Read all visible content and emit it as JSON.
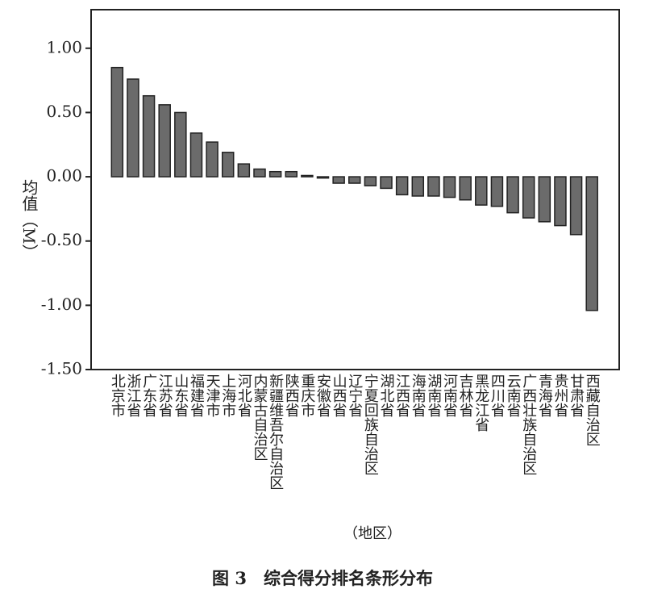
{
  "chart_data": {
    "type": "bar",
    "caption": "图 3　综合得分排名条形分布",
    "y_label": "均值（M）",
    "x_label": "（地区）",
    "categories": [
      "北京市",
      "浙江省",
      "广东省",
      "江苏省",
      "山东省",
      "福建省",
      "天津市",
      "上海市",
      "河北省",
      "内蒙古自治区",
      "新疆维吾尔自治区",
      "陕西省",
      "重庆市",
      "安徽省",
      "山西省",
      "辽宁省",
      "宁夏回族自治区",
      "湖北省",
      "江西省",
      "海南省",
      "湖南省",
      "河南省",
      "吉林省",
      "黑龙江省",
      "四川省",
      "云南省",
      "广西壮族自治区",
      "青海省",
      "贵州省",
      "甘肃省",
      "西藏自治区"
    ],
    "values": [
      0.85,
      0.76,
      0.63,
      0.56,
      0.5,
      0.34,
      0.27,
      0.19,
      0.1,
      0.06,
      0.04,
      0.04,
      0.01,
      -0.01,
      -0.05,
      -0.05,
      -0.07,
      -0.09,
      -0.14,
      -0.15,
      -0.15,
      -0.16,
      -0.18,
      -0.22,
      -0.23,
      -0.28,
      -0.32,
      -0.35,
      -0.38,
      -0.45,
      -1.04
    ],
    "color": "#6b6b6b",
    "ylim": [
      -1.5,
      1.3
    ],
    "yticks": [
      {
        "value": -1.5,
        "label": "-1.50"
      },
      {
        "value": -1,
        "label": "-1.00"
      },
      {
        "value": -0.5,
        "label": "-0.50"
      },
      {
        "value": 0,
        "label": "0.00"
      },
      {
        "value": 0.5,
        "label": "0.50"
      },
      {
        "value": 1,
        "label": "1.00"
      }
    ]
  }
}
